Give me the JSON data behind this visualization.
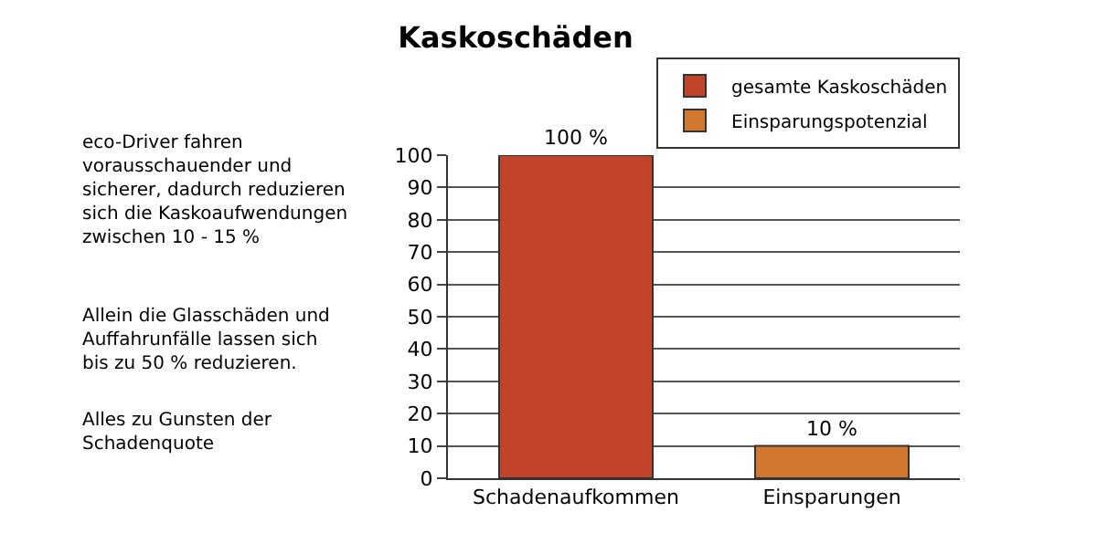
{
  "chart_data": {
    "type": "bar",
    "title": "Kaskoschäden",
    "categories": [
      "Schadenaufkommen",
      "Einsparungen"
    ],
    "series": [
      {
        "name": "gesamte Kaskoschäden",
        "color": "#c0432a",
        "values": [
          100,
          null
        ],
        "value_labels": [
          "100 %",
          null
        ]
      },
      {
        "name": "Einsparungspotenzial",
        "color": "#d2782e",
        "values": [
          null,
          10
        ],
        "value_labels": [
          null,
          "10 %"
        ]
      }
    ],
    "ylim": [
      0,
      100
    ],
    "yticks": [
      0,
      10,
      20,
      30,
      40,
      50,
      60,
      70,
      80,
      90,
      100
    ],
    "grid": "y",
    "legend": "top right",
    "annotations": [
      "eco-Driver fahren\nvorausschauender und\nsicherer, dadurch reduzieren\nsich die Kaskoaufwendungen\nzwischen 10 - 15 %",
      "Allein die Glasschäden und\nAuffahrunfälle lassen sich\nbis zu 50 % reduzieren.",
      "Alles zu Gunsten der\nSchadenquote"
    ]
  }
}
